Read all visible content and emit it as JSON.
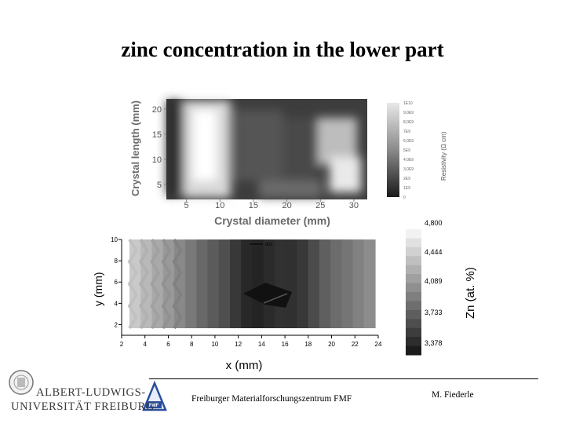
{
  "slide": {
    "title": "zinc concentration in the lower part",
    "footer": {
      "university_line1": "ALBERT-LUDWIGS-",
      "university_line2": "UNIVERSITÄT FREIBURG",
      "institute": "Freiburger Materialforschungszentrum FMF",
      "logo_text": "FMF",
      "author": "M. Fiederle"
    }
  },
  "chart_data": [
    {
      "type": "heatmap",
      "title": "",
      "xlabel": "Crystal diameter (mm)",
      "ylabel": "Crystal length (mm)",
      "x_ticks": [
        "5",
        "10",
        "15",
        "20",
        "25",
        "30"
      ],
      "y_ticks": [
        "5",
        "10",
        "15",
        "20"
      ],
      "xlim": [
        2,
        32
      ],
      "ylim": [
        2,
        22
      ],
      "colorbar": {
        "label": "Resistivity (Ω cm)",
        "tick_labels": [
          "1E10",
          "9,0E9",
          "8,0E9",
          "7E9",
          "6,0E9",
          "5E9",
          "4,0E9",
          "3,0E9",
          "2E9",
          "1E9",
          "0"
        ]
      }
    },
    {
      "type": "heatmap",
      "title": "",
      "xlabel": "x (mm)",
      "ylabel": "y (mm)",
      "x_ticks": [
        "2",
        "4",
        "6",
        "8",
        "10",
        "12",
        "14",
        "16",
        "18",
        "20",
        "22",
        "24"
      ],
      "y_ticks": [
        "2",
        "4",
        "6",
        "8",
        "10"
      ],
      "xlim": [
        2,
        24
      ],
      "ylim": [
        1,
        10
      ],
      "legend": "top-center",
      "series_name": "sn1",
      "columns_zn": [
        4.5,
        4.4,
        4.3,
        4.2,
        4.1,
        4.0,
        3.9,
        3.82,
        3.74,
        3.6,
        3.5,
        3.48,
        3.52,
        3.56,
        3.55,
        3.6,
        3.72,
        3.84,
        3.92,
        3.98,
        4.05,
        4.12
      ],
      "colorbar": {
        "label": "Zn (at. %)",
        "tick_labels": [
          "4,800",
          "4,444",
          "4,089",
          "3,733",
          "3,378"
        ],
        "range": [
          3.378,
          4.8
        ]
      }
    }
  ]
}
